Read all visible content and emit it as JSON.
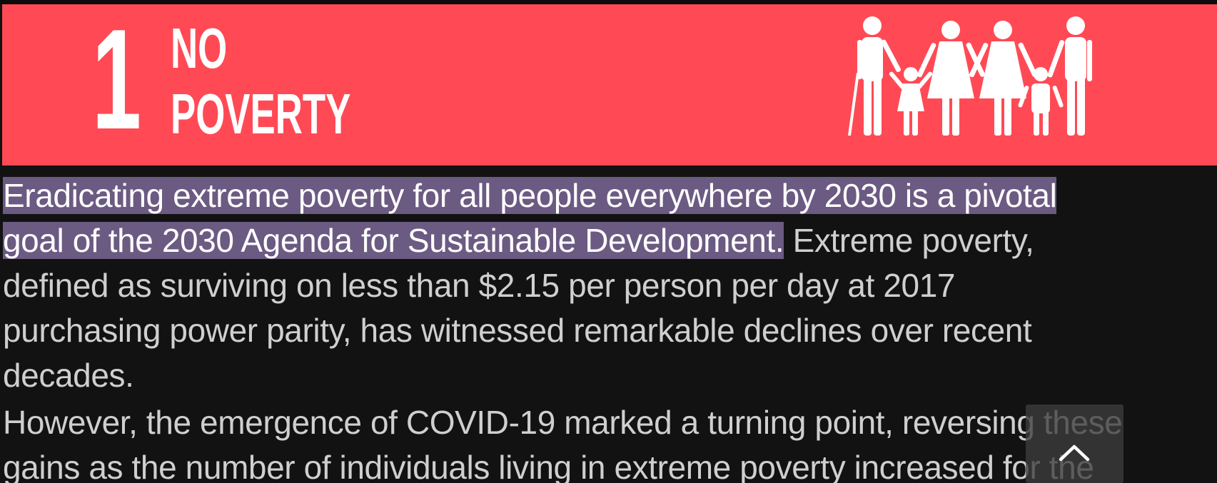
{
  "banner": {
    "goal_number": "1",
    "title_line1": "NO",
    "title_line2": "POVERTY",
    "icon": "family-icon",
    "color": "#ff4a55"
  },
  "content": {
    "paragraphs": [
      {
        "lines": [
          {
            "highlighted": "Eradicating extreme poverty for all people everywhere by 2030 is a pivotal",
            "plain": ""
          },
          {
            "highlighted": "goal of the 2030 Agenda for Sustainable Development.",
            "plain": " Extreme poverty,"
          },
          {
            "highlighted": "",
            "plain": "defined as surviving on less than $2.15 per person per day at 2017"
          },
          {
            "highlighted": "",
            "plain": "purchasing power parity, has witnessed remarkable declines over recent"
          },
          {
            "highlighted": "",
            "plain": "decades."
          }
        ]
      },
      {
        "lines": [
          {
            "highlighted": "",
            "plain": "However, the emergence of COVID-19 marked a turning point, reversing these"
          },
          {
            "highlighted": "",
            "plain": "gains as the number of individuals living in extreme poverty increased for the"
          }
        ]
      }
    ],
    "highlight_color": "#6b5a82",
    "text_color": "#cfcfcf"
  },
  "scroll_top_button": {
    "icon": "chevron-up-icon"
  }
}
